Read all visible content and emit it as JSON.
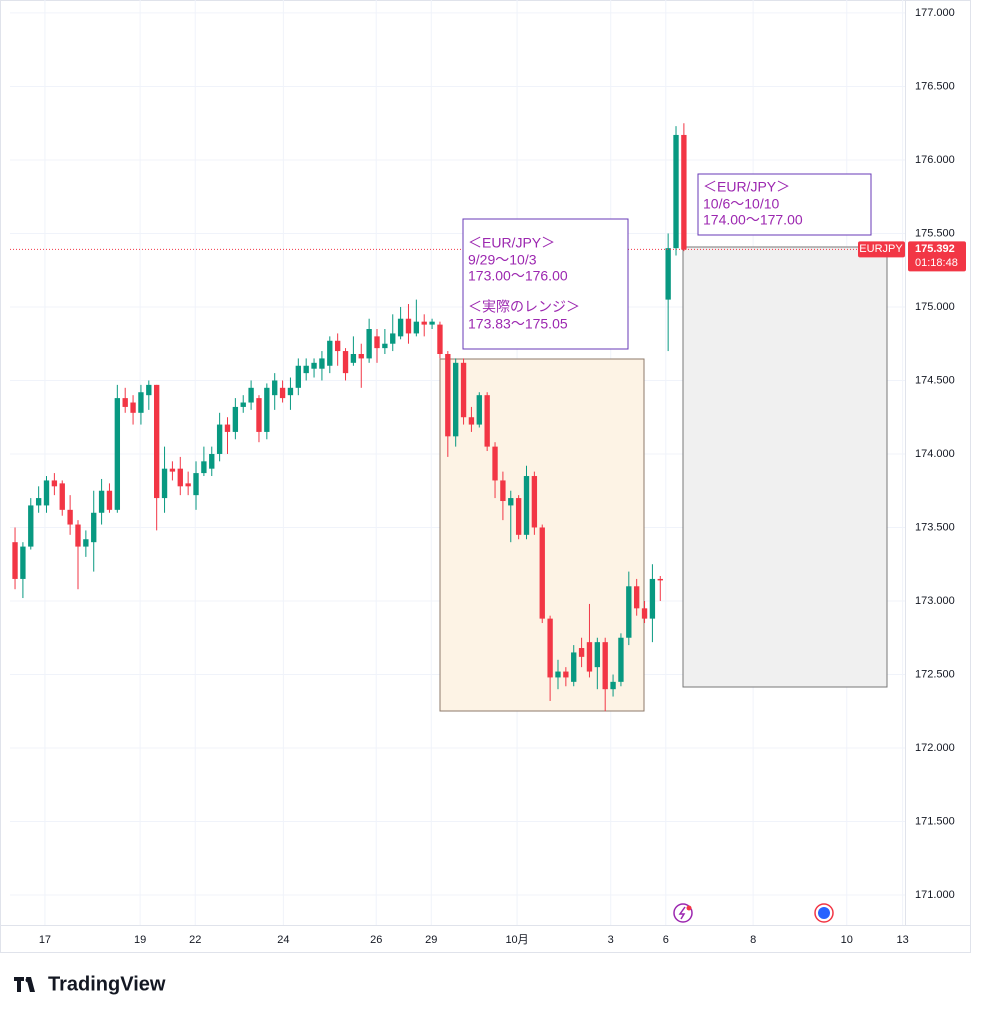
{
  "chart_data": {
    "type": "candlestick",
    "open": [
      173.4,
      173.15,
      173.37,
      173.65,
      173.65,
      173.82,
      173.8,
      173.62,
      173.52,
      173.37,
      173.4,
      173.6,
      173.75,
      173.62,
      174.38,
      174.35,
      174.28,
      174.4,
      174.47,
      173.7,
      173.9,
      173.9,
      173.8,
      173.72,
      173.87,
      173.9,
      174.0,
      174.2,
      174.15,
      174.32,
      174.35,
      174.38,
      174.15,
      174.4,
      174.45,
      174.4,
      174.45,
      174.55,
      174.58,
      174.58,
      174.6,
      174.77,
      174.7,
      174.62,
      174.68,
      174.65,
      174.8,
      174.72,
      174.75,
      174.8,
      174.92,
      174.82,
      174.9,
      174.88,
      174.88,
      174.68,
      174.12,
      174.62,
      174.25,
      174.2,
      174.4,
      174.05,
      173.82,
      173.65,
      173.7,
      173.45,
      173.85,
      173.5,
      172.88,
      172.48,
      172.52,
      172.45,
      172.68,
      172.72,
      172.55,
      172.72,
      172.4,
      172.45,
      172.75,
      173.1,
      172.95,
      172.88,
      173.15,
      175.05,
      175.4,
      176.17
    ],
    "high": [
      173.5,
      173.4,
      173.7,
      173.78,
      173.85,
      173.87,
      173.82,
      173.72,
      173.55,
      173.48,
      173.75,
      173.83,
      173.8,
      174.47,
      174.45,
      174.4,
      174.47,
      174.5,
      174.47,
      174.05,
      173.95,
      173.98,
      173.88,
      173.95,
      174.05,
      174.05,
      174.28,
      174.25,
      174.38,
      174.4,
      174.5,
      174.4,
      174.48,
      174.55,
      174.5,
      174.52,
      174.65,
      174.65,
      174.65,
      174.7,
      174.8,
      174.82,
      174.72,
      174.8,
      174.75,
      174.92,
      174.85,
      174.85,
      174.95,
      175.0,
      175.02,
      175.05,
      174.95,
      174.92,
      174.9,
      174.7,
      174.65,
      174.65,
      174.32,
      174.42,
      174.42,
      174.08,
      173.88,
      173.75,
      173.72,
      173.92,
      173.88,
      173.52,
      172.9,
      172.6,
      172.55,
      172.7,
      172.75,
      172.98,
      172.75,
      172.75,
      172.5,
      172.78,
      173.2,
      173.15,
      173.0,
      173.25,
      173.17,
      175.5,
      176.23,
      176.25
    ],
    "low": [
      173.08,
      173.02,
      173.35,
      173.6,
      173.6,
      173.72,
      173.58,
      173.45,
      173.08,
      173.3,
      173.2,
      173.52,
      173.6,
      173.6,
      174.28,
      174.2,
      174.2,
      174.3,
      173.48,
      173.6,
      173.82,
      173.72,
      173.72,
      173.62,
      173.85,
      173.85,
      173.95,
      174.0,
      174.1,
      174.28,
      174.3,
      174.08,
      174.1,
      174.3,
      174.35,
      174.3,
      174.4,
      174.5,
      174.52,
      174.5,
      174.55,
      174.6,
      174.5,
      174.6,
      174.45,
      174.62,
      174.62,
      174.68,
      174.7,
      174.78,
      174.75,
      174.8,
      174.8,
      174.85,
      174.65,
      173.98,
      174.05,
      174.2,
      174.15,
      174.18,
      174.02,
      173.7,
      173.55,
      173.4,
      173.42,
      173.42,
      173.45,
      172.85,
      172.32,
      172.4,
      172.42,
      172.42,
      172.55,
      172.48,
      172.4,
      172.25,
      172.35,
      172.42,
      172.7,
      172.9,
      172.85,
      172.72,
      173.0,
      174.7,
      175.35,
      175.38
    ],
    "close": [
      173.15,
      173.37,
      173.65,
      173.7,
      173.82,
      173.78,
      173.62,
      173.52,
      173.37,
      173.42,
      173.6,
      173.75,
      173.62,
      174.38,
      174.32,
      174.28,
      174.42,
      174.47,
      173.7,
      173.9,
      173.88,
      173.78,
      173.78,
      173.87,
      173.95,
      174.0,
      174.2,
      174.15,
      174.32,
      174.35,
      174.45,
      174.15,
      174.45,
      174.5,
      174.38,
      174.45,
      174.6,
      174.6,
      174.62,
      174.65,
      174.77,
      174.7,
      174.55,
      174.68,
      174.65,
      174.85,
      174.72,
      174.75,
      174.82,
      174.92,
      174.82,
      174.9,
      174.88,
      174.9,
      174.68,
      174.12,
      174.62,
      174.25,
      174.2,
      174.4,
      174.05,
      173.82,
      173.68,
      173.7,
      173.45,
      173.85,
      173.5,
      172.88,
      172.48,
      172.52,
      172.48,
      172.65,
      172.62,
      172.52,
      172.72,
      172.4,
      172.45,
      172.75,
      173.1,
      172.95,
      172.88,
      173.15,
      173.14,
      175.4,
      176.17,
      175.39
    ],
    "up_color": "#089981",
    "down_color": "#f23645",
    "xlim": [
      -0.64,
      113.1
    ],
    "xticks": [
      {
        "value": 3.8,
        "label": "17"
      },
      {
        "value": 15.9,
        "label": "19"
      },
      {
        "value": 22.9,
        "label": "22"
      },
      {
        "value": 34.1,
        "label": "24"
      },
      {
        "value": 45.9,
        "label": "26"
      },
      {
        "value": 52.9,
        "label": "29"
      },
      {
        "value": 63.8,
        "label": "10月"
      },
      {
        "value": 75.7,
        "label": "3"
      },
      {
        "value": 82.7,
        "label": "6"
      },
      {
        "value": 93.8,
        "label": "8"
      },
      {
        "value": 105.7,
        "label": "10"
      },
      {
        "value": 112.8,
        "label": "13"
      }
    ],
    "ylim": [
      170.796,
      177.088
    ],
    "yticks": [
      {
        "value": 171,
        "label": "171.000"
      },
      {
        "value": 171.5,
        "label": "171.500"
      },
      {
        "value": 172,
        "label": "172.000"
      },
      {
        "value": 172.5,
        "label": "172.500"
      },
      {
        "value": 173,
        "label": "173.000"
      },
      {
        "value": 173.5,
        "label": "173.500"
      },
      {
        "value": 174,
        "label": "174.000"
      },
      {
        "value": 174.5,
        "label": "174.500"
      },
      {
        "value": 175,
        "label": "175.000"
      },
      {
        "value": 175.5,
        "label": "175.500"
      },
      {
        "value": 176,
        "label": "176.000"
      },
      {
        "value": 176.5,
        "label": "176.500"
      },
      {
        "value": 177,
        "label": "177.000"
      }
    ],
    "grid": true,
    "price_line": {
      "symbol": "EURJPY",
      "price": 175.392,
      "countdown": "01:18:48"
    },
    "annotations": [
      {
        "lines": [
          "＜EUR/JPY＞",
          "9/29〜10/3",
          "173.00〜176.00",
          "＜実際のレンジ＞",
          "173.83〜175.05"
        ]
      },
      {
        "lines": [
          "＜EUR/JPY＞",
          "10/6〜10/10",
          "174.00〜177.00"
        ]
      }
    ],
    "brand": "TradingView"
  }
}
